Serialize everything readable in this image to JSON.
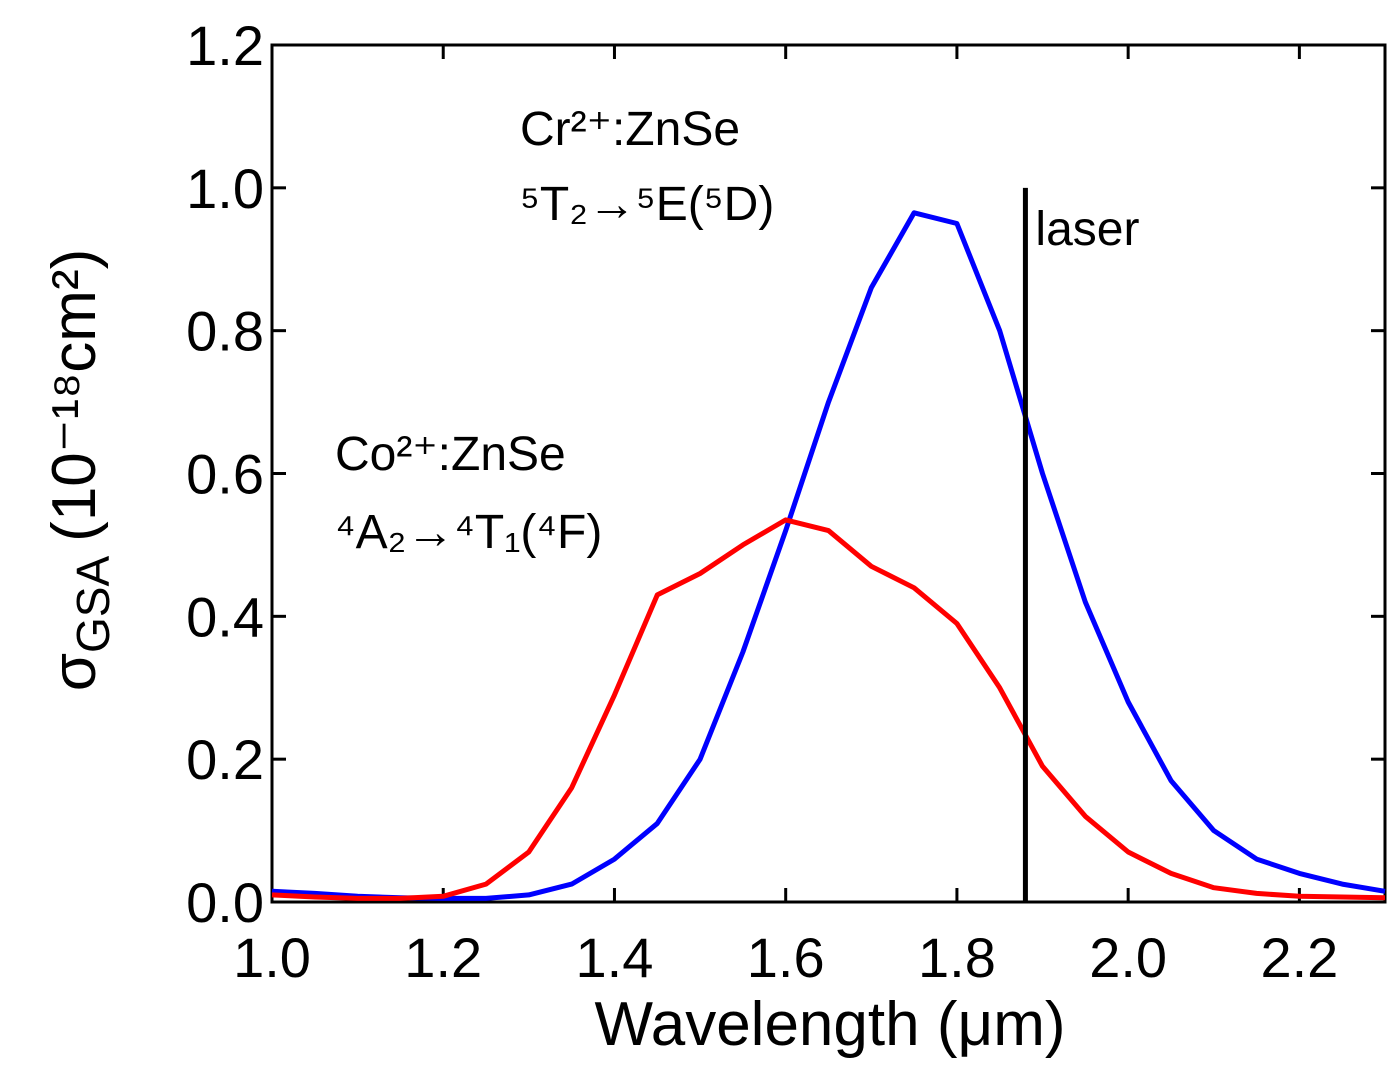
{
  "chart_data": {
    "type": "line",
    "xlabel": "Wavelength (μm)",
    "ylabel": {
      "symbol": "σ",
      "subscript": "GSA",
      "unit": "(10⁻¹⁸cm²)"
    },
    "x": [
      1.0,
      1.05,
      1.1,
      1.15,
      1.2,
      1.25,
      1.3,
      1.35,
      1.4,
      1.45,
      1.5,
      1.55,
      1.6,
      1.65,
      1.7,
      1.75,
      1.8,
      1.85,
      1.9,
      1.95,
      2.0,
      2.05,
      2.1,
      2.15,
      2.2,
      2.25,
      2.3
    ],
    "series": [
      {
        "name": "Cr²⁺:ZnSe",
        "color": "#0000ff",
        "values": [
          0.015,
          0.012,
          0.008,
          0.006,
          0.005,
          0.005,
          0.01,
          0.025,
          0.06,
          0.11,
          0.2,
          0.35,
          0.52,
          0.7,
          0.86,
          0.965,
          0.95,
          0.8,
          0.6,
          0.42,
          0.28,
          0.17,
          0.1,
          0.06,
          0.04,
          0.025,
          0.015
        ]
      },
      {
        "name": "Co²⁺:ZnSe",
        "color": "#ff0000",
        "values": [
          0.01,
          0.007,
          0.005,
          0.005,
          0.008,
          0.025,
          0.07,
          0.16,
          0.29,
          0.43,
          0.46,
          0.5,
          0.535,
          0.52,
          0.47,
          0.44,
          0.39,
          0.3,
          0.19,
          0.12,
          0.07,
          0.04,
          0.02,
          0.012,
          0.008,
          0.007,
          0.006
        ]
      }
    ],
    "annotations": [
      {
        "lines": [
          "Cr²⁺:ZnSe",
          "⁵T₂→⁵E(⁵D)"
        ]
      },
      {
        "lines": [
          "Co²⁺:ZnSe",
          "⁴A₂→⁴T₁(⁴F)"
        ]
      }
    ],
    "laser": {
      "label": "laser",
      "x": 1.88,
      "top": 1.0,
      "color": "#000000"
    },
    "xlim": [
      1.0,
      2.3
    ],
    "ylim": [
      0.0,
      1.2
    ],
    "xticks": [
      {
        "value": 1.0,
        "label": "1.0"
      },
      1.2,
      1.4,
      1.6,
      1.8,
      {
        "value": 2.0,
        "label": "2.0"
      },
      2.2
    ],
    "yticks": [
      {
        "value": 0.0,
        "label": "0.0"
      },
      0.2,
      0.4,
      0.6,
      0.8,
      {
        "value": 1.0,
        "label": "1.0"
      },
      1.2
    ]
  }
}
